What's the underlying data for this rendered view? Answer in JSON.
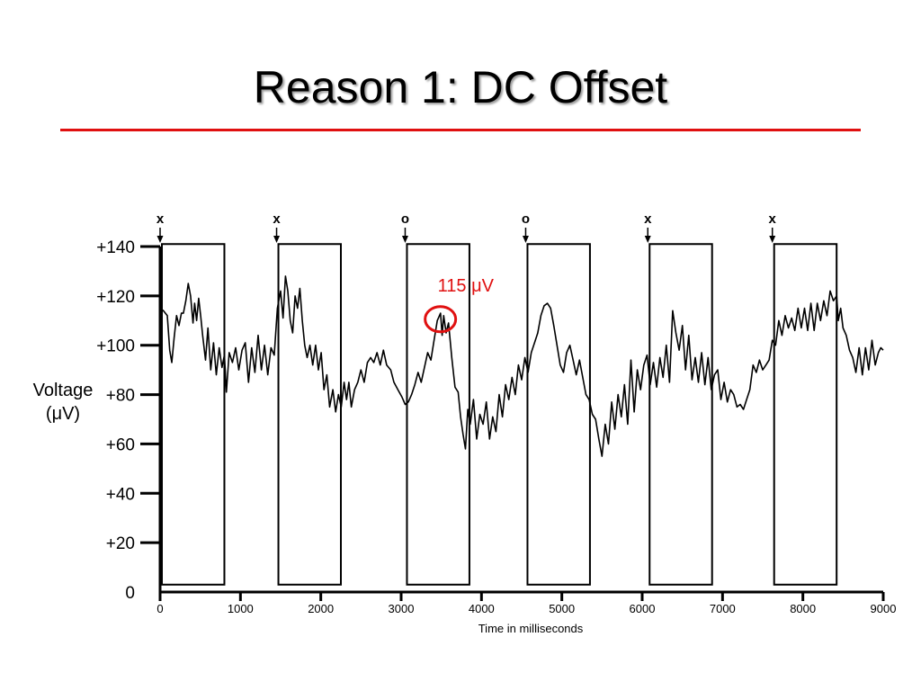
{
  "slide": {
    "title": "Reason 1: DC Offset",
    "rule_color": "#e01010"
  },
  "chart_data": {
    "type": "line",
    "title": "",
    "xlabel": "Time in milliseconds",
    "ylabel_lines": [
      "Voltage",
      "(μV)"
    ],
    "xlim": [
      0,
      9000
    ],
    "ylim": [
      0,
      140
    ],
    "x_ticks": [
      0,
      1000,
      2000,
      3000,
      4000,
      5000,
      6000,
      7000,
      8000,
      9000
    ],
    "x_tick_labels": [
      "0",
      "1000",
      "2000",
      "3000",
      "4000",
      "5000",
      "6000",
      "7000",
      "8000",
      "9000"
    ],
    "y_ticks": [
      0,
      20,
      40,
      60,
      80,
      100,
      120,
      140
    ],
    "y_tick_labels": [
      "0",
      "+20",
      "+40",
      "+60",
      "+80",
      "+100",
      "+120",
      "+140"
    ],
    "grid": false,
    "series": [
      {
        "color": "#000000",
        "points": [
          [
            0,
            115
          ],
          [
            40,
            114
          ],
          [
            90,
            112
          ],
          [
            120,
            98
          ],
          [
            145,
            93
          ],
          [
            175,
            103
          ],
          [
            205,
            112
          ],
          [
            235,
            108
          ],
          [
            265,
            113
          ],
          [
            290,
            113
          ],
          [
            320,
            118
          ],
          [
            350,
            125
          ],
          [
            380,
            120
          ],
          [
            410,
            109
          ],
          [
            430,
            117
          ],
          [
            455,
            110
          ],
          [
            480,
            119
          ],
          [
            505,
            112
          ],
          [
            530,
            104
          ],
          [
            565,
            94
          ],
          [
            595,
            107
          ],
          [
            630,
            90
          ],
          [
            665,
            101
          ],
          [
            700,
            88
          ],
          [
            735,
            99
          ],
          [
            770,
            91
          ],
          [
            800,
            96
          ],
          [
            825,
            81
          ],
          [
            860,
            97
          ],
          [
            900,
            93
          ],
          [
            940,
            99
          ],
          [
            980,
            90
          ],
          [
            1020,
            98
          ],
          [
            1060,
            101
          ],
          [
            1100,
            85
          ],
          [
            1140,
            99
          ],
          [
            1180,
            89
          ],
          [
            1220,
            104
          ],
          [
            1260,
            90
          ],
          [
            1300,
            100
          ],
          [
            1340,
            88
          ],
          [
            1380,
            99
          ],
          [
            1420,
            96
          ],
          [
            1460,
            115
          ],
          [
            1500,
            122
          ],
          [
            1530,
            111
          ],
          [
            1560,
            128
          ],
          [
            1590,
            122
          ],
          [
            1620,
            110
          ],
          [
            1650,
            105
          ],
          [
            1680,
            120
          ],
          [
            1710,
            115
          ],
          [
            1740,
            123
          ],
          [
            1770,
            110
          ],
          [
            1800,
            100
          ],
          [
            1830,
            95
          ],
          [
            1865,
            100
          ],
          [
            1900,
            92
          ],
          [
            1935,
            100
          ],
          [
            1970,
            90
          ],
          [
            2005,
            97
          ],
          [
            2040,
            82
          ],
          [
            2075,
            88
          ],
          [
            2110,
            75
          ],
          [
            2150,
            82
          ],
          [
            2185,
            73
          ],
          [
            2220,
            80
          ],
          [
            2255,
            75
          ],
          [
            2290,
            85
          ],
          [
            2320,
            78
          ],
          [
            2350,
            85
          ],
          [
            2380,
            75
          ],
          [
            2420,
            82
          ],
          [
            2460,
            85
          ],
          [
            2500,
            90
          ],
          [
            2540,
            85
          ],
          [
            2580,
            93
          ],
          [
            2620,
            95
          ],
          [
            2660,
            93
          ],
          [
            2700,
            97
          ],
          [
            2740,
            92
          ],
          [
            2780,
            98
          ],
          [
            2820,
            92
          ],
          [
            2870,
            90
          ],
          [
            2910,
            85
          ],
          [
            2960,
            82
          ],
          [
            3010,
            79
          ],
          [
            3050,
            76
          ],
          [
            3090,
            77
          ],
          [
            3130,
            80
          ],
          [
            3170,
            84
          ],
          [
            3210,
            89
          ],
          [
            3250,
            85
          ],
          [
            3290,
            91
          ],
          [
            3330,
            97
          ],
          [
            3370,
            94
          ],
          [
            3410,
            102
          ],
          [
            3450,
            110
          ],
          [
            3490,
            113
          ],
          [
            3510,
            104
          ],
          [
            3530,
            112
          ],
          [
            3560,
            105
          ],
          [
            3590,
            109
          ],
          [
            3630,
            95
          ],
          [
            3670,
            83
          ],
          [
            3710,
            81
          ],
          [
            3740,
            71
          ],
          [
            3770,
            64
          ],
          [
            3800,
            58
          ],
          [
            3830,
            74
          ],
          [
            3860,
            68
          ],
          [
            3900,
            78
          ],
          [
            3940,
            62
          ],
          [
            3980,
            72
          ],
          [
            4020,
            68
          ],
          [
            4060,
            77
          ],
          [
            4100,
            62
          ],
          [
            4140,
            71
          ],
          [
            4180,
            65
          ],
          [
            4220,
            80
          ],
          [
            4260,
            71
          ],
          [
            4300,
            84
          ],
          [
            4340,
            78
          ],
          [
            4380,
            87
          ],
          [
            4420,
            80
          ],
          [
            4460,
            92
          ],
          [
            4500,
            86
          ],
          [
            4540,
            95
          ],
          [
            4580,
            89
          ],
          [
            4620,
            97
          ],
          [
            4660,
            101
          ],
          [
            4700,
            105
          ],
          [
            4740,
            112
          ],
          [
            4780,
            116
          ],
          [
            4820,
            117
          ],
          [
            4860,
            115
          ],
          [
            4900,
            108
          ],
          [
            4940,
            100
          ],
          [
            4980,
            92
          ],
          [
            5020,
            89
          ],
          [
            5060,
            97
          ],
          [
            5100,
            100
          ],
          [
            5140,
            94
          ],
          [
            5180,
            88
          ],
          [
            5220,
            94
          ],
          [
            5260,
            87
          ],
          [
            5300,
            80
          ],
          [
            5340,
            78
          ],
          [
            5380,
            72
          ],
          [
            5420,
            70
          ],
          [
            5460,
            62
          ],
          [
            5500,
            55
          ],
          [
            5540,
            68
          ],
          [
            5580,
            60
          ],
          [
            5620,
            77
          ],
          [
            5660,
            66
          ],
          [
            5700,
            80
          ],
          [
            5740,
            71
          ],
          [
            5780,
            84
          ],
          [
            5820,
            68
          ],
          [
            5860,
            94
          ],
          [
            5900,
            73
          ],
          [
            5940,
            90
          ],
          [
            5980,
            82
          ],
          [
            6020,
            92
          ],
          [
            6060,
            96
          ],
          [
            6100,
            84
          ],
          [
            6140,
            93
          ],
          [
            6180,
            83
          ],
          [
            6220,
            95
          ],
          [
            6260,
            87
          ],
          [
            6300,
            100
          ],
          [
            6340,
            85
          ],
          [
            6380,
            114
          ],
          [
            6420,
            105
          ],
          [
            6460,
            98
          ],
          [
            6500,
            108
          ],
          [
            6540,
            90
          ],
          [
            6580,
            104
          ],
          [
            6620,
            86
          ],
          [
            6660,
            95
          ],
          [
            6700,
            85
          ],
          [
            6740,
            97
          ],
          [
            6780,
            84
          ],
          [
            6820,
            95
          ],
          [
            6860,
            82
          ],
          [
            6900,
            88
          ],
          [
            6940,
            90
          ],
          [
            6980,
            78
          ],
          [
            7020,
            85
          ],
          [
            7060,
            77
          ],
          [
            7100,
            82
          ],
          [
            7140,
            80
          ],
          [
            7180,
            75
          ],
          [
            7220,
            76
          ],
          [
            7260,
            74
          ],
          [
            7300,
            78
          ],
          [
            7340,
            82
          ],
          [
            7380,
            92
          ],
          [
            7420,
            89
          ],
          [
            7460,
            94
          ],
          [
            7500,
            90
          ],
          [
            7540,
            92
          ],
          [
            7580,
            94
          ],
          [
            7620,
            102
          ],
          [
            7660,
            100
          ],
          [
            7700,
            110
          ],
          [
            7740,
            104
          ],
          [
            7780,
            112
          ],
          [
            7820,
            107
          ],
          [
            7860,
            111
          ],
          [
            7900,
            106
          ],
          [
            7940,
            115
          ],
          [
            7980,
            107
          ],
          [
            8020,
            115
          ],
          [
            8060,
            106
          ],
          [
            8100,
            117
          ],
          [
            8140,
            106
          ],
          [
            8180,
            117
          ],
          [
            8220,
            110
          ],
          [
            8260,
            118
          ],
          [
            8300,
            112
          ],
          [
            8340,
            122
          ],
          [
            8380,
            118
          ],
          [
            8420,
            120
          ],
          [
            8440,
            110
          ],
          [
            8470,
            115
          ],
          [
            8500,
            107
          ],
          [
            8540,
            104
          ],
          [
            8580,
            98
          ],
          [
            8620,
            95
          ],
          [
            8660,
            89
          ],
          [
            8700,
            99
          ],
          [
            8740,
            88
          ],
          [
            8780,
            99
          ],
          [
            8820,
            90
          ],
          [
            8860,
            102
          ],
          [
            8900,
            92
          ],
          [
            8940,
            97
          ],
          [
            8970,
            99
          ],
          [
            9000,
            98
          ]
        ]
      }
    ],
    "trial_windows": [
      {
        "marker": "x",
        "start": 0,
        "end": 800
      },
      {
        "marker": "x",
        "start": 1450,
        "end": 2250
      },
      {
        "marker": "o",
        "start": 3050,
        "end": 3850
      },
      {
        "marker": "o",
        "start": 4550,
        "end": 5350
      },
      {
        "marker": "x",
        "start": 6070,
        "end": 6870
      },
      {
        "marker": "x",
        "start": 7620,
        "end": 8420
      }
    ],
    "window_ylim": [
      3,
      141
    ],
    "annotation": {
      "text": "115 μV",
      "x": 3500,
      "y": 112,
      "color": "#e01010"
    }
  }
}
